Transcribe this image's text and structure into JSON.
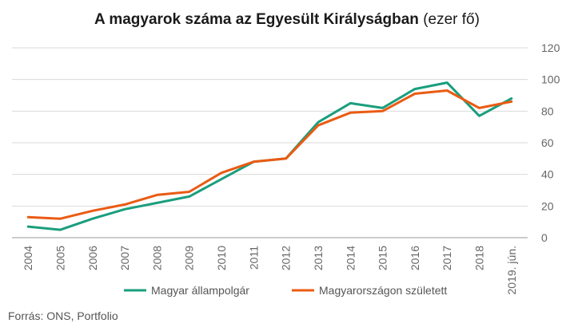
{
  "chart_data": {
    "type": "line",
    "title": "A magyarok száma az Egyesült Királyságban",
    "title_unit": "(ezer fő)",
    "x": [
      "2004",
      "2005",
      "2006",
      "2007",
      "2008",
      "2009",
      "2010",
      "2011",
      "2012",
      "2013",
      "2014",
      "2015",
      "2016",
      "2017",
      "2018",
      "2019. jún."
    ],
    "ylim": [
      0,
      120
    ],
    "yticks": [
      "0",
      "20",
      "40",
      "60",
      "80",
      "100",
      "120"
    ],
    "grid": true,
    "legend_position": "bottom",
    "series": [
      {
        "name": "Magyar állampolgár",
        "color": "#1a9e7d",
        "values": [
          7,
          5,
          12,
          18,
          22,
          26,
          37,
          48,
          50,
          73,
          85,
          82,
          94,
          98,
          77,
          88
        ]
      },
      {
        "name": "Magyarországon született",
        "color": "#ea5b13",
        "values": [
          13,
          12,
          17,
          21,
          27,
          29,
          41,
          48,
          50,
          71,
          79,
          80,
          91,
          93,
          82,
          86
        ]
      }
    ]
  },
  "source": "Forrás: ONS, Portfolio"
}
